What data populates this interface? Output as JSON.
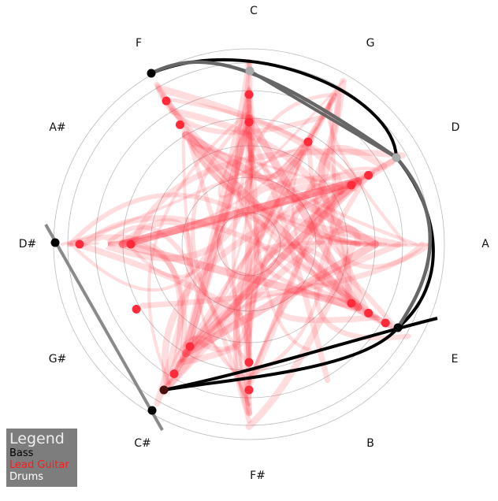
{
  "notes": [
    "C",
    "G",
    "D",
    "A",
    "E",
    "B",
    "F#",
    "C#",
    "G#",
    "D#",
    "A#",
    "F"
  ],
  "legend": {
    "title": "Legend",
    "items": [
      {
        "label": "Bass",
        "color": "#000000"
      },
      {
        "label": "Lead Guitar",
        "color": "#ff1a1a"
      },
      {
        "label": "Drums",
        "color": "#ffffff"
      }
    ]
  },
  "colors": {
    "bass": "#000000",
    "bass_secondary": "#666666",
    "lead": "#ff2a3a",
    "drums": "#ffffff",
    "rings": "#bbbbbb"
  }
}
